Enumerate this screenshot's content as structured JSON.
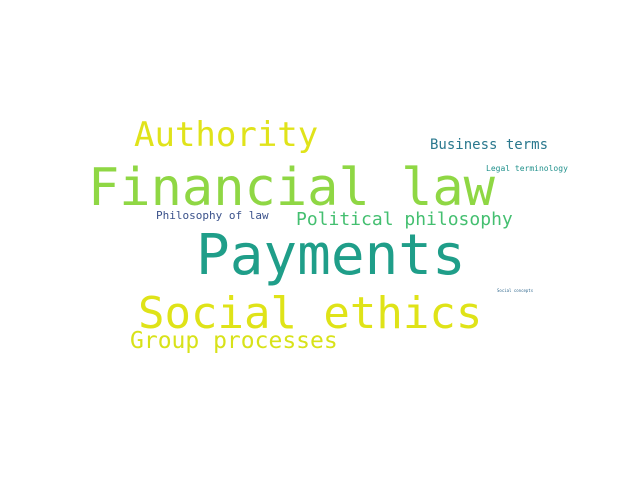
{
  "words": [
    {
      "text": "Financial law",
      "color": "#8fd744"
    },
    {
      "text": "Payments",
      "color": "#1f9e89"
    },
    {
      "text": "Social ethics",
      "color": "#dfe318"
    },
    {
      "text": "Authority",
      "color": "#e0e31a"
    },
    {
      "text": "Group processes",
      "color": "#d8e219"
    },
    {
      "text": "Political philosophy",
      "color": "#44bf70"
    },
    {
      "text": "Business terms",
      "color": "#2a788e"
    },
    {
      "text": "Philosophy of law",
      "color": "#3b528b"
    },
    {
      "text": "Legal terminology",
      "color": "#21918c"
    },
    {
      "text": "Social concepts",
      "color": "#31688e"
    }
  ]
}
